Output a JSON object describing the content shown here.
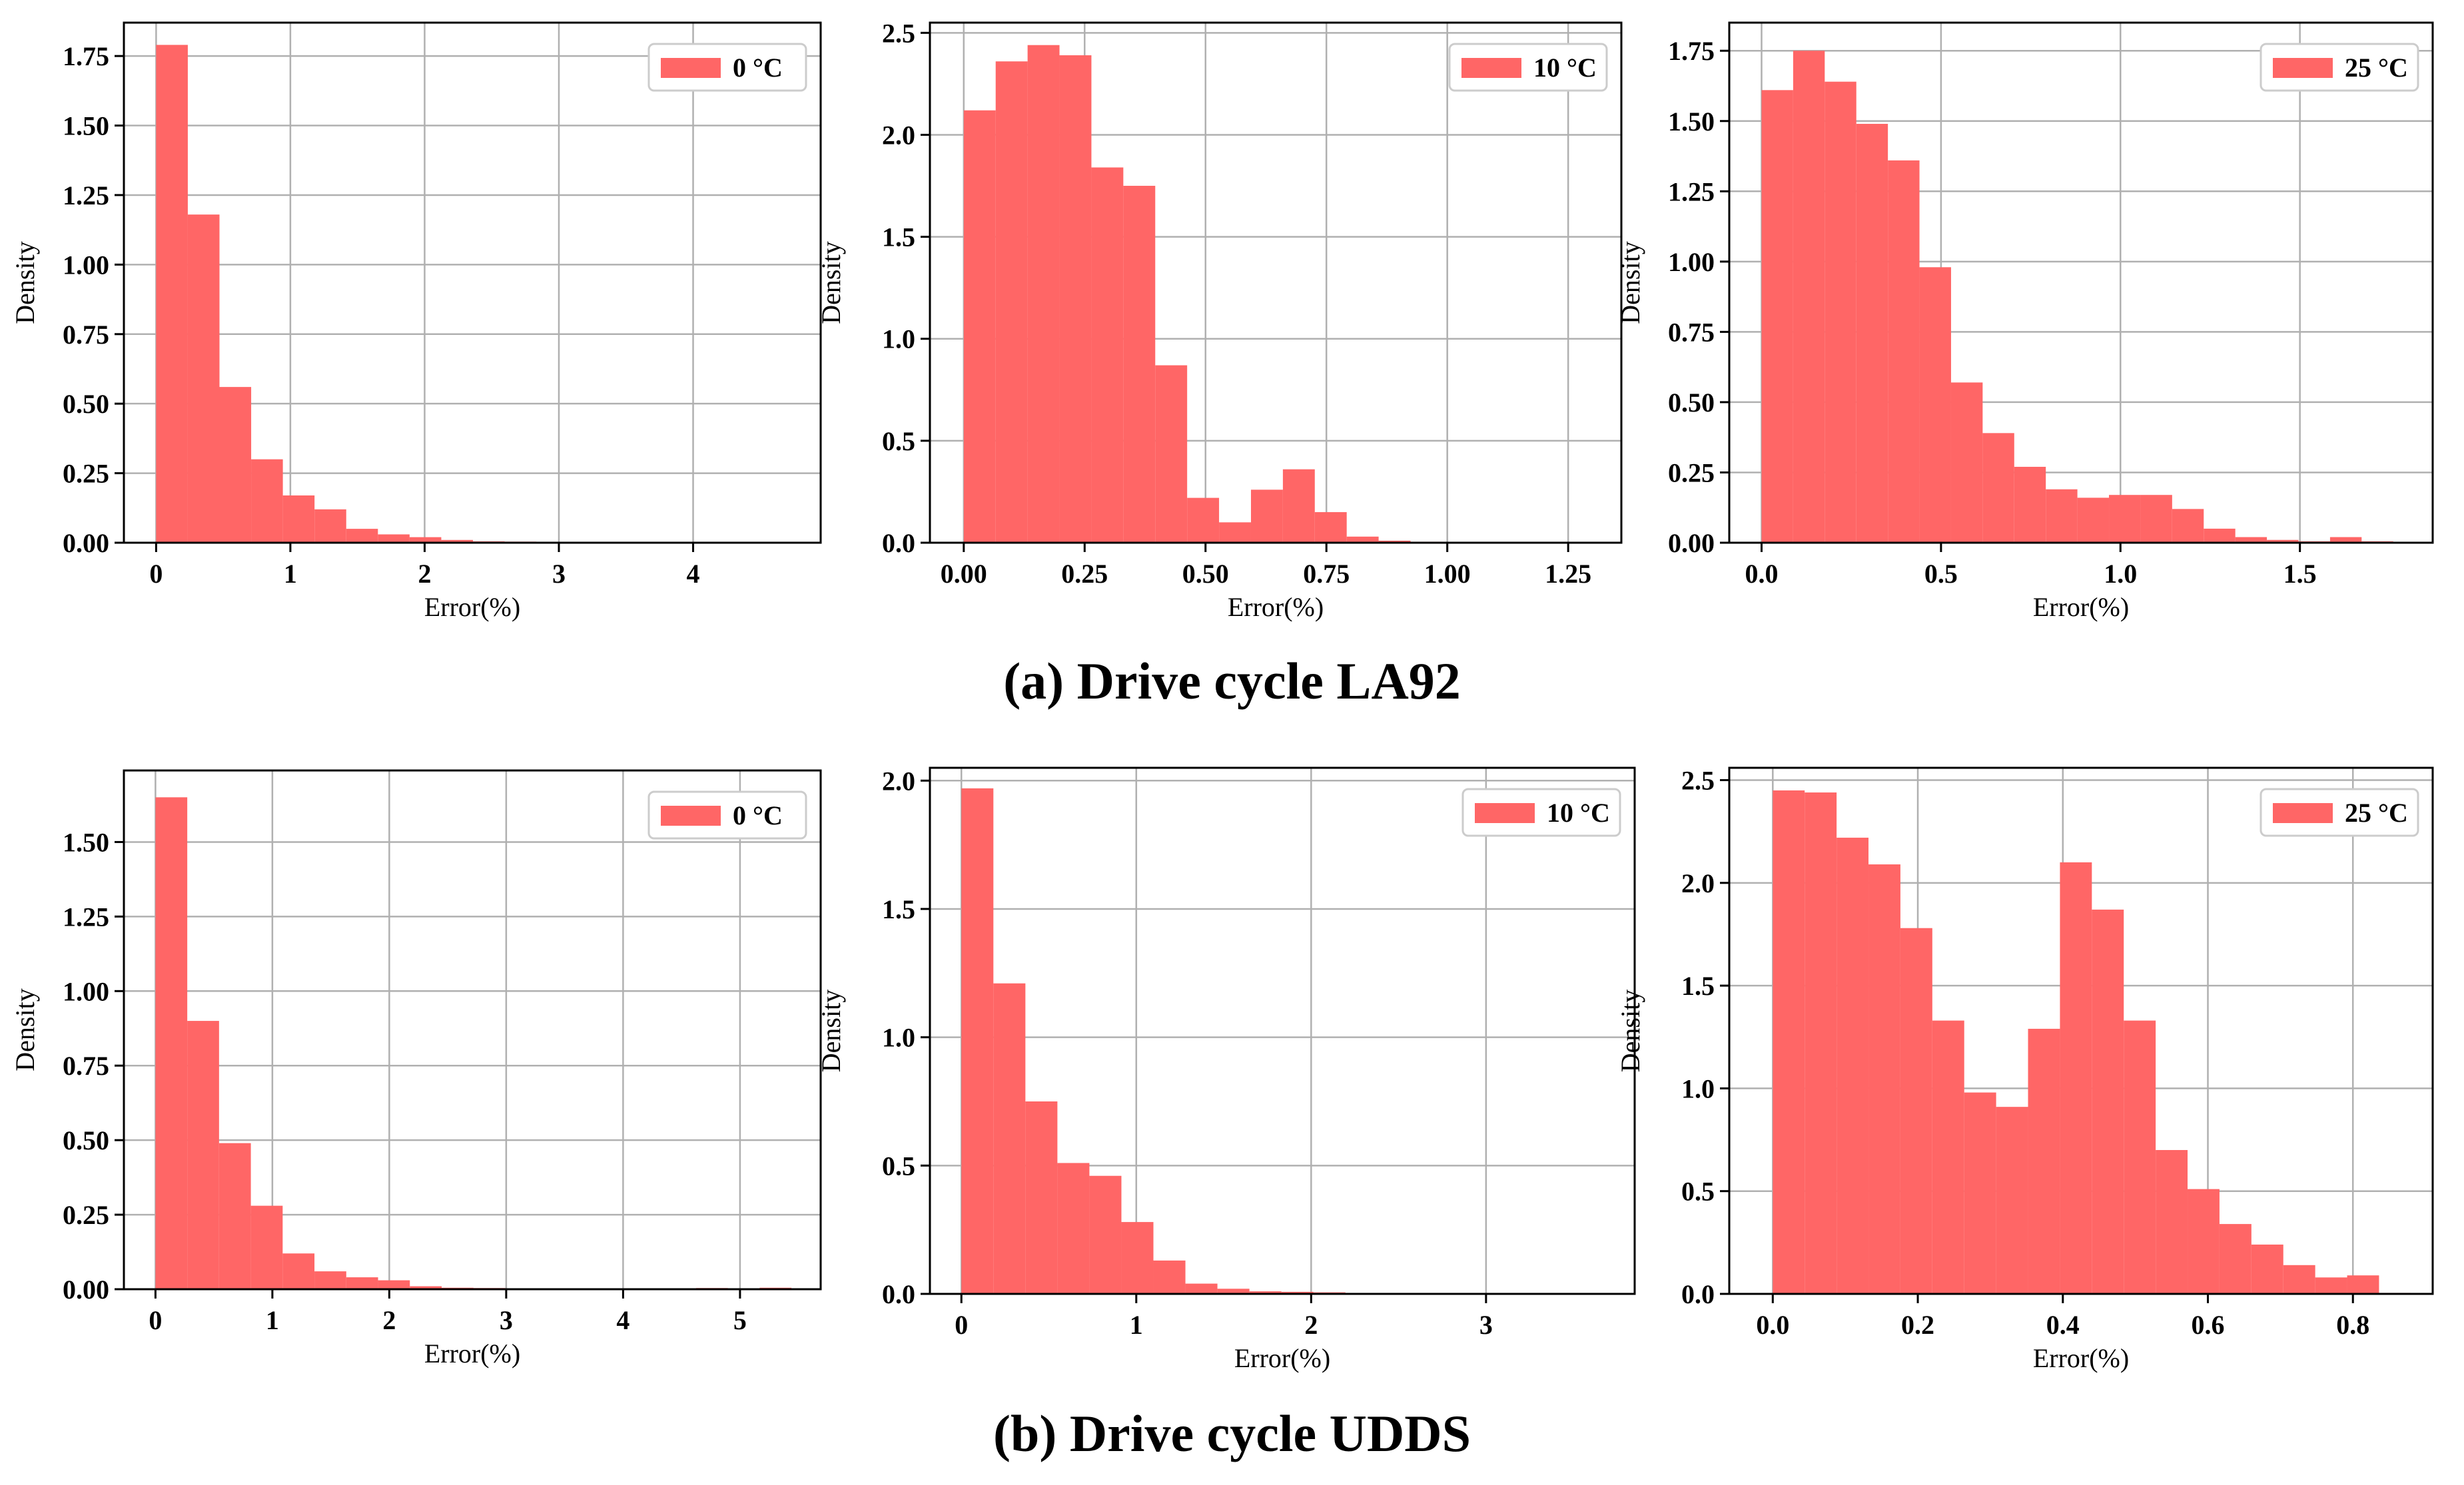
{
  "captions": {
    "a": "(a) Drive cycle LA92",
    "b": "(b) Drive cycle UDDS"
  },
  "colors": {
    "bar": "#ff6666",
    "grid": "#b0b0b0",
    "axis": "#000000"
  },
  "chart_data": [
    {
      "type": "bar",
      "group": "(a) Drive cycle LA92",
      "xlabel": "Error(%)",
      "ylabel": "Density",
      "legend": "0 °C",
      "legend_position": "top-right",
      "grid": true,
      "xlim": [
        -0.24,
        4.95
      ],
      "ylim": [
        0,
        1.87
      ],
      "xticks": [
        0,
        1,
        2,
        3,
        4
      ],
      "xtick_labels": [
        "0",
        "1",
        "2",
        "3",
        "4"
      ],
      "yticks": [
        0,
        0.25,
        0.5,
        0.75,
        1.0,
        1.25,
        1.5,
        1.75
      ],
      "ytick_labels": [
        "0.00",
        "0.25",
        "0.50",
        "0.75",
        "1.00",
        "1.25",
        "1.50",
        "1.75"
      ],
      "bin_edges": [
        0,
        0.236,
        0.472,
        0.708,
        0.944,
        1.18,
        1.416,
        1.652,
        1.888,
        2.124,
        2.36,
        2.596,
        2.832,
        3.068,
        3.304
      ],
      "values": [
        1.79,
        1.18,
        0.56,
        0.3,
        0.17,
        0.12,
        0.05,
        0.03,
        0.02,
        0.01,
        0.005,
        0.004,
        0.003,
        0.002
      ]
    },
    {
      "type": "bar",
      "group": "(a) Drive cycle LA92",
      "xlabel": "Error(%)",
      "ylabel": "Density",
      "legend": "10 °C",
      "legend_position": "top-right",
      "grid": true,
      "xlim": [
        -0.07,
        1.36
      ],
      "ylim": [
        0,
        2.55
      ],
      "xticks": [
        0,
        0.25,
        0.5,
        0.75,
        1.0,
        1.25
      ],
      "xtick_labels": [
        "0.00",
        "0.25",
        "0.50",
        "0.75",
        "1.00",
        "1.25"
      ],
      "yticks": [
        0,
        0.5,
        1.0,
        1.5,
        2.0,
        2.5
      ],
      "ytick_labels": [
        "0.0",
        "0.5",
        "1.0",
        "1.5",
        "2.0",
        "2.5"
      ],
      "bin_edges": [
        0,
        0.066,
        0.132,
        0.198,
        0.264,
        0.33,
        0.396,
        0.462,
        0.528,
        0.594,
        0.66,
        0.726,
        0.792,
        0.858,
        0.924,
        0.99,
        1.056
      ],
      "values": [
        2.12,
        2.36,
        2.44,
        2.39,
        1.84,
        1.75,
        0.87,
        0.22,
        0.1,
        0.26,
        0.36,
        0.15,
        0.03,
        0.01,
        0.005,
        0.004
      ]
    },
    {
      "type": "bar",
      "group": "(a) Drive cycle LA92",
      "xlabel": "Error(%)",
      "ylabel": "Density",
      "legend": "25 °C",
      "legend_position": "top-right",
      "grid": true,
      "xlim": [
        -0.09,
        1.87
      ],
      "ylim": [
        0,
        1.85
      ],
      "xticks": [
        0,
        0.5,
        1.0,
        1.5
      ],
      "xtick_labels": [
        "0.0",
        "0.5",
        "1.0",
        "1.5"
      ],
      "yticks": [
        0,
        0.25,
        0.5,
        0.75,
        1.0,
        1.25,
        1.5,
        1.75
      ],
      "ytick_labels": [
        "0.00",
        "0.25",
        "0.50",
        "0.75",
        "1.00",
        "1.25",
        "1.50",
        "1.75"
      ],
      "bin_edges": [
        0,
        0.088,
        0.176,
        0.264,
        0.352,
        0.44,
        0.528,
        0.616,
        0.704,
        0.792,
        0.88,
        0.968,
        1.056,
        1.144,
        1.232,
        1.32,
        1.408,
        1.496,
        1.584,
        1.672,
        1.76
      ],
      "values": [
        1.61,
        1.75,
        1.64,
        1.49,
        1.36,
        0.98,
        0.57,
        0.39,
        0.27,
        0.19,
        0.16,
        0.17,
        0.17,
        0.12,
        0.05,
        0.02,
        0.01,
        0.005,
        0.02,
        0.005
      ]
    },
    {
      "type": "bar",
      "group": "(b) Drive cycle UDDS",
      "xlabel": "Error(%)",
      "ylabel": "Density",
      "legend": "0 °C",
      "legend_position": "top-right",
      "grid": true,
      "xlim": [
        -0.27,
        5.69
      ],
      "ylim": [
        0,
        1.74
      ],
      "xticks": [
        0,
        1,
        2,
        3,
        4,
        5
      ],
      "xtick_labels": [
        "0",
        "1",
        "2",
        "3",
        "4",
        "5"
      ],
      "yticks": [
        0,
        0.25,
        0.5,
        0.75,
        1.0,
        1.25,
        1.5
      ],
      "ytick_labels": [
        "0.00",
        "0.25",
        "0.50",
        "0.75",
        "1.00",
        "1.25",
        "1.50"
      ],
      "bin_edges": [
        0,
        0.272,
        0.544,
        0.816,
        1.088,
        1.36,
        1.632,
        1.904,
        2.176,
        2.448,
        2.72,
        2.992,
        3.264,
        3.536,
        3.808,
        4.08,
        4.352,
        4.624,
        4.896,
        5.168,
        5.44
      ],
      "values": [
        1.65,
        0.9,
        0.49,
        0.28,
        0.12,
        0.06,
        0.04,
        0.03,
        0.01,
        0.005,
        0.004,
        0.003,
        0.003,
        0.002,
        0.002,
        0,
        0.002,
        0.004,
        0,
        0.005
      ]
    },
    {
      "type": "bar",
      "group": "(b) Drive cycle UDDS",
      "xlabel": "Error(%)",
      "ylabel": "Density",
      "legend": "10 °C",
      "legend_position": "top-right",
      "grid": true,
      "xlim": [
        -0.18,
        3.85
      ],
      "ylim": [
        0,
        2.05
      ],
      "xticks": [
        0,
        1,
        2,
        3
      ],
      "xtick_labels": [
        "0",
        "1",
        "2",
        "3"
      ],
      "yticks": [
        0,
        0.5,
        1.0,
        1.5,
        2.0
      ],
      "ytick_labels": [
        "0.0",
        "0.5",
        "1.0",
        "1.5",
        "2.0"
      ],
      "bin_edges": [
        0,
        0.183,
        0.366,
        0.549,
        0.732,
        0.915,
        1.098,
        1.281,
        1.464,
        1.647,
        1.83,
        2.013,
        2.196,
        2.379
      ],
      "values": [
        1.97,
        1.21,
        0.75,
        0.51,
        0.46,
        0.28,
        0.13,
        0.04,
        0.02,
        0.01,
        0.008,
        0.006,
        0.003
      ]
    },
    {
      "type": "bar",
      "group": "(b) Drive cycle UDDS",
      "xlabel": "Error(%)",
      "ylabel": "Density",
      "legend": "25 °C",
      "legend_position": "top-right",
      "grid": true,
      "xlim": [
        -0.06,
        0.91
      ],
      "ylim": [
        0,
        2.56
      ],
      "xticks": [
        0,
        0.2,
        0.4,
        0.6,
        0.8
      ],
      "xtick_labels": [
        "0.0",
        "0.2",
        "0.4",
        "0.6",
        "0.8"
      ],
      "yticks": [
        0,
        0.5,
        1.0,
        1.5,
        2.0,
        2.5
      ],
      "ytick_labels": [
        "0.0",
        "0.5",
        "1.0",
        "1.5",
        "2.0",
        "2.5"
      ],
      "bin_edges": [
        0,
        0.044,
        0.088,
        0.132,
        0.176,
        0.22,
        0.264,
        0.308,
        0.352,
        0.396,
        0.44,
        0.484,
        0.528,
        0.572,
        0.616,
        0.66,
        0.704,
        0.748,
        0.792,
        0.836,
        0.88
      ],
      "values": [
        2.45,
        2.44,
        2.22,
        2.09,
        1.78,
        1.33,
        0.98,
        0.91,
        1.29,
        2.1,
        1.87,
        1.33,
        0.7,
        0.51,
        0.34,
        0.24,
        0.14,
        0.08,
        0.09,
        0.005
      ]
    }
  ]
}
